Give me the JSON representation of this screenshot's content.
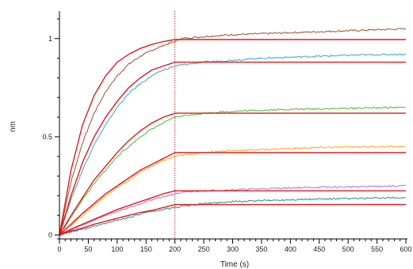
{
  "chart_data": {
    "type": "line",
    "title": "",
    "xlabel": "Time (s)",
    "ylabel": "nm",
    "xlim": [
      0,
      600
    ],
    "ylim": [
      -0.02,
      1.14
    ],
    "x_ticks": [
      0,
      50,
      100,
      150,
      200,
      250,
      300,
      350,
      400,
      450,
      500,
      550,
      600
    ],
    "x_tick_labels": [
      "0",
      "50",
      "100",
      "150",
      "200",
      "250",
      "300",
      "350",
      "400",
      "450",
      "500",
      "550",
      "600"
    ],
    "y_ticks": [
      0,
      0.5,
      1
    ],
    "y_tick_labels": [
      "0",
      "0.5",
      "1"
    ],
    "grid": false,
    "legend": "none",
    "event_line_x": 200,
    "event_line_color": "#c0392b",
    "fit_color": "#e31a1c",
    "series": [
      {
        "color": "#a0522d",
        "data": [
          [
            0,
            0
          ],
          [
            20,
            0.27
          ],
          [
            40,
            0.47
          ],
          [
            60,
            0.62
          ],
          [
            80,
            0.73
          ],
          [
            100,
            0.81
          ],
          [
            120,
            0.87
          ],
          [
            140,
            0.91
          ],
          [
            160,
            0.94
          ],
          [
            180,
            0.965
          ],
          [
            200,
            0.985
          ],
          [
            210,
            1.0
          ],
          [
            250,
            1.01
          ],
          [
            300,
            1.02
          ],
          [
            350,
            1.025
          ],
          [
            400,
            1.03
          ],
          [
            450,
            1.035
          ],
          [
            500,
            1.04
          ],
          [
            550,
            1.045
          ],
          [
            600,
            1.05
          ]
        ]
      },
      {
        "color": "#3ba8c4",
        "data": [
          [
            0,
            0
          ],
          [
            20,
            0.18
          ],
          [
            40,
            0.33
          ],
          [
            60,
            0.46
          ],
          [
            80,
            0.56
          ],
          [
            100,
            0.65
          ],
          [
            120,
            0.72
          ],
          [
            140,
            0.77
          ],
          [
            160,
            0.81
          ],
          [
            180,
            0.84
          ],
          [
            200,
            0.86
          ],
          [
            210,
            0.865
          ],
          [
            250,
            0.88
          ],
          [
            300,
            0.89
          ],
          [
            350,
            0.9
          ],
          [
            400,
            0.905
          ],
          [
            450,
            0.91
          ],
          [
            500,
            0.915
          ],
          [
            550,
            0.918
          ],
          [
            600,
            0.92
          ]
        ]
      },
      {
        "color": "#4cbb3a",
        "data": [
          [
            0,
            0
          ],
          [
            20,
            0.09
          ],
          [
            40,
            0.18
          ],
          [
            60,
            0.26
          ],
          [
            80,
            0.33
          ],
          [
            100,
            0.4
          ],
          [
            120,
            0.45
          ],
          [
            140,
            0.5
          ],
          [
            160,
            0.54
          ],
          [
            180,
            0.57
          ],
          [
            200,
            0.6
          ],
          [
            210,
            0.605
          ],
          [
            250,
            0.62
          ],
          [
            300,
            0.63
          ],
          [
            350,
            0.635
          ],
          [
            400,
            0.64
          ],
          [
            450,
            0.642
          ],
          [
            500,
            0.645
          ],
          [
            550,
            0.648
          ],
          [
            600,
            0.65
          ]
        ]
      },
      {
        "color": "#f5a623",
        "data": [
          [
            0,
            0
          ],
          [
            20,
            0.05
          ],
          [
            40,
            0.1
          ],
          [
            60,
            0.15
          ],
          [
            80,
            0.2
          ],
          [
            100,
            0.24
          ],
          [
            120,
            0.28
          ],
          [
            140,
            0.32
          ],
          [
            160,
            0.35
          ],
          [
            180,
            0.38
          ],
          [
            200,
            0.4
          ],
          [
            210,
            0.405
          ],
          [
            250,
            0.42
          ],
          [
            300,
            0.43
          ],
          [
            350,
            0.435
          ],
          [
            400,
            0.44
          ],
          [
            450,
            0.445
          ],
          [
            500,
            0.448
          ],
          [
            550,
            0.45
          ],
          [
            600,
            0.45
          ]
        ]
      },
      {
        "color": "#b074d6",
        "data": [
          [
            0,
            0
          ],
          [
            20,
            0.025
          ],
          [
            40,
            0.05
          ],
          [
            60,
            0.075
          ],
          [
            80,
            0.1
          ],
          [
            100,
            0.12
          ],
          [
            120,
            0.14
          ],
          [
            140,
            0.16
          ],
          [
            160,
            0.18
          ],
          [
            180,
            0.195
          ],
          [
            200,
            0.21
          ],
          [
            210,
            0.215
          ],
          [
            250,
            0.225
          ],
          [
            300,
            0.23
          ],
          [
            350,
            0.235
          ],
          [
            400,
            0.24
          ],
          [
            450,
            0.243
          ],
          [
            500,
            0.245
          ],
          [
            550,
            0.248
          ],
          [
            600,
            0.25
          ]
        ]
      },
      {
        "color": "#2e8b8b",
        "data": [
          [
            0,
            0
          ],
          [
            20,
            0.015
          ],
          [
            40,
            0.03
          ],
          [
            60,
            0.045
          ],
          [
            80,
            0.06
          ],
          [
            100,
            0.075
          ],
          [
            120,
            0.09
          ],
          [
            140,
            0.105
          ],
          [
            160,
            0.12
          ],
          [
            180,
            0.13
          ],
          [
            200,
            0.14
          ],
          [
            210,
            0.145
          ],
          [
            250,
            0.16
          ],
          [
            300,
            0.17
          ],
          [
            350,
            0.175
          ],
          [
            400,
            0.18
          ],
          [
            450,
            0.183
          ],
          [
            500,
            0.185
          ],
          [
            550,
            0.188
          ],
          [
            600,
            0.19
          ]
        ]
      }
    ],
    "fits": [
      {
        "data": [
          [
            0,
            0
          ],
          [
            20,
            0.33
          ],
          [
            40,
            0.56
          ],
          [
            60,
            0.71
          ],
          [
            80,
            0.81
          ],
          [
            100,
            0.88
          ],
          [
            120,
            0.92
          ],
          [
            140,
            0.95
          ],
          [
            160,
            0.97
          ],
          [
            180,
            0.985
          ],
          [
            200,
            0.995
          ],
          [
            600,
            0.995
          ]
        ]
      },
      {
        "data": [
          [
            0,
            0
          ],
          [
            20,
            0.2
          ],
          [
            40,
            0.37
          ],
          [
            60,
            0.5
          ],
          [
            80,
            0.6
          ],
          [
            100,
            0.68
          ],
          [
            120,
            0.75
          ],
          [
            140,
            0.8
          ],
          [
            160,
            0.84
          ],
          [
            180,
            0.86
          ],
          [
            200,
            0.88
          ],
          [
            600,
            0.88
          ]
        ]
      },
      {
        "data": [
          [
            0,
            0
          ],
          [
            20,
            0.1
          ],
          [
            40,
            0.19
          ],
          [
            60,
            0.28
          ],
          [
            80,
            0.35
          ],
          [
            100,
            0.42
          ],
          [
            120,
            0.48
          ],
          [
            140,
            0.53
          ],
          [
            160,
            0.57
          ],
          [
            180,
            0.6
          ],
          [
            200,
            0.62
          ],
          [
            600,
            0.62
          ]
        ]
      },
      {
        "data": [
          [
            0,
            0
          ],
          [
            20,
            0.055
          ],
          [
            40,
            0.11
          ],
          [
            60,
            0.16
          ],
          [
            80,
            0.21
          ],
          [
            100,
            0.25
          ],
          [
            120,
            0.29
          ],
          [
            140,
            0.33
          ],
          [
            160,
            0.36
          ],
          [
            180,
            0.39
          ],
          [
            200,
            0.42
          ],
          [
            600,
            0.42
          ]
        ]
      },
      {
        "data": [
          [
            0,
            0
          ],
          [
            20,
            0.03
          ],
          [
            40,
            0.055
          ],
          [
            60,
            0.08
          ],
          [
            80,
            0.105
          ],
          [
            100,
            0.13
          ],
          [
            120,
            0.15
          ],
          [
            140,
            0.17
          ],
          [
            160,
            0.19
          ],
          [
            180,
            0.21
          ],
          [
            200,
            0.225
          ],
          [
            600,
            0.225
          ]
        ]
      },
      {
        "data": [
          [
            0,
            0
          ],
          [
            20,
            0.02
          ],
          [
            40,
            0.035
          ],
          [
            60,
            0.055
          ],
          [
            80,
            0.07
          ],
          [
            100,
            0.085
          ],
          [
            120,
            0.1
          ],
          [
            140,
            0.115
          ],
          [
            160,
            0.125
          ],
          [
            180,
            0.14
          ],
          [
            200,
            0.155
          ],
          [
            600,
            0.155
          ]
        ]
      }
    ]
  }
}
